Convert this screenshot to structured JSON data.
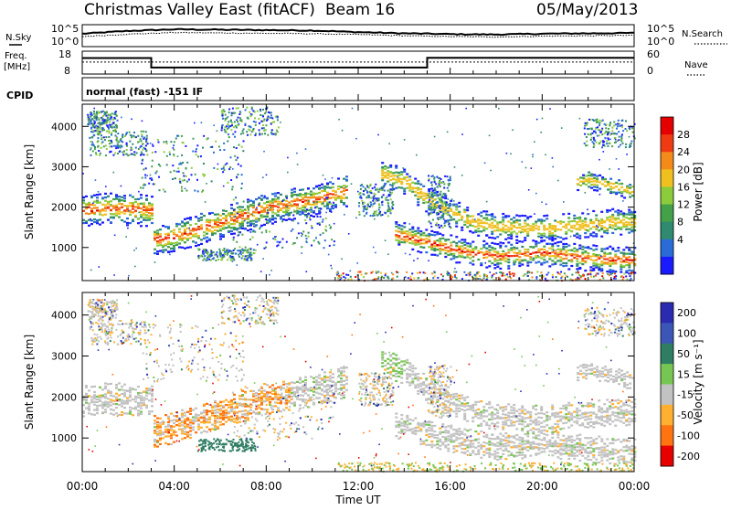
{
  "header": {
    "station": "Christmas Valley East (fitACF)",
    "beam": "Beam 16",
    "date": "05/May/2013"
  },
  "strips": {
    "nsky_label": "N.Sky",
    "nsearch_label": "N.Search",
    "noise_ticks_left": [
      "10^5",
      "10^0"
    ],
    "noise_ticks_right": [
      "10^5",
      "10^0"
    ],
    "freq_label_1": "Freq.",
    "freq_label_2": "[MHz]",
    "freq_ticks": [
      "18",
      "8"
    ],
    "nave_label": "Nave",
    "nave_ticks": [
      "60",
      "0"
    ],
    "cpid_label": "CPID",
    "cpid_text": "normal (fast) -151 IF"
  },
  "colorbars": {
    "power": {
      "label": "Power [dB]",
      "ticks": [
        "28",
        "24",
        "20",
        "16",
        "12",
        "8",
        "4"
      ]
    },
    "velocity": {
      "label": "Velocity [m s⁻¹]",
      "ticks": [
        "200",
        "100",
        "50",
        "15",
        "-15",
        "-50",
        "-100",
        "-200"
      ]
    }
  },
  "chart_data": [
    {
      "type": "line",
      "name": "noise",
      "x_unit": "hours UT",
      "series": [
        {
          "name": "N.Sky",
          "x": [
            0,
            2,
            4,
            6,
            8,
            10,
            12,
            14,
            16,
            18,
            20,
            22,
            24
          ],
          "y_log10": [
            3.2,
            3.9,
            4.3,
            4.2,
            4.1,
            4.0,
            3.6,
            3.3,
            3.1,
            3.0,
            3.2,
            3.3,
            3.4
          ]
        },
        {
          "name": "N.Search",
          "x": [
            0,
            2,
            4,
            6,
            8,
            10,
            12,
            14,
            16,
            18,
            20,
            22,
            24
          ],
          "y_log10": [
            2.5,
            3.1,
            3.5,
            3.4,
            3.3,
            3.2,
            3.0,
            2.7,
            2.5,
            2.4,
            2.6,
            2.7,
            2.8
          ]
        }
      ],
      "ylim_log10": [
        0,
        5
      ]
    },
    {
      "type": "line",
      "name": "frequency",
      "x": [
        0,
        3,
        3,
        15,
        15,
        24
      ],
      "y": [
        15.5,
        15.5,
        10.8,
        10.8,
        15.6,
        15.6
      ],
      "ylim": [
        8,
        18
      ],
      "nave_level": 33
    },
    {
      "type": "heatmap",
      "name": "power",
      "xlabel": "Time UT",
      "ylabel": "Slant Range [km]",
      "xlim": [
        0,
        24
      ],
      "ylim": [
        180,
        4550
      ],
      "x_ticks": [
        "00:00",
        "04:00",
        "08:00",
        "12:00",
        "16:00",
        "20:00",
        "00:00"
      ],
      "y_ticks": [
        1000,
        2000,
        3000,
        4000
      ],
      "features": [
        {
          "x": [
            0,
            1,
            2,
            3,
            3.05,
            4,
            6,
            8,
            10,
            11,
            11.5
          ],
          "y": [
            1950,
            2000,
            1980,
            1950,
            1200,
            1300,
            1650,
            2000,
            2200,
            2350,
            2450
          ],
          "width": 380
        },
        {
          "x": [
            13.6,
            15,
            16,
            17,
            18,
            19,
            20,
            21,
            22,
            23,
            24
          ],
          "y": [
            1350,
            1150,
            1000,
            880,
            820,
            850,
            900,
            820,
            760,
            720,
            700
          ],
          "width": 300
        },
        {
          "x": [
            13,
            14,
            15,
            16,
            17,
            18,
            19,
            20,
            21,
            22,
            23,
            24
          ],
          "y": [
            2850,
            2650,
            2200,
            1900,
            1650,
            1550,
            1500,
            1500,
            1550,
            1600,
            1650,
            1650
          ],
          "width": 300
        },
        {
          "x": [
            21.5,
            22,
            23,
            24
          ],
          "y": [
            2650,
            2700,
            2550,
            2400
          ],
          "width": 200
        }
      ]
    },
    {
      "type": "heatmap",
      "name": "velocity",
      "xlabel": "Time UT",
      "ylabel": "Slant Range [km]",
      "xlim": [
        0,
        24
      ],
      "ylim": [
        180,
        4550
      ]
    }
  ]
}
